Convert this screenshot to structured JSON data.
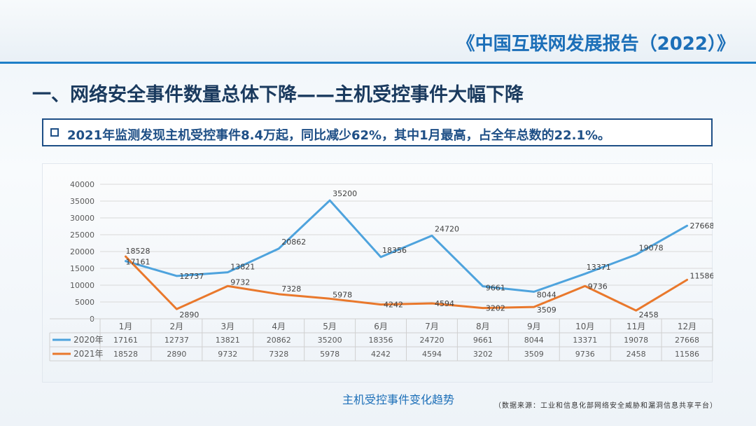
{
  "header": {
    "report_title": "《中国互联网发展报告（2022）》"
  },
  "section": {
    "heading": "一、网络安全事件数量总体下降——主机受控事件大幅下降"
  },
  "summary": {
    "text": "2021年监测发现主机受控事件8.4万起，同比减少62%，其中1月最高，占全年总数的22.1%。"
  },
  "chart_caption": "主机受控事件变化趋势",
  "source_note": "（数据来源：工业和信息化部网络安全威胁和漏洞信息共享平台）",
  "chart_data": {
    "type": "line",
    "title": "主机受控事件变化趋势",
    "categories": [
      "1月",
      "2月",
      "3月",
      "4月",
      "5月",
      "6月",
      "7月",
      "8月",
      "9月",
      "10月",
      "11月",
      "12月"
    ],
    "y_ticks": [
      0,
      5000,
      10000,
      15000,
      20000,
      25000,
      30000,
      35000,
      40000
    ],
    "ylim": [
      0,
      40000
    ],
    "grid": true,
    "legend_placement": "data-table-left",
    "series": [
      {
        "name": "2020年",
        "color": "#4ea3dd",
        "values": [
          17161,
          12737,
          13821,
          20862,
          35200,
          18356,
          24720,
          9661,
          8044,
          13371,
          19078,
          27668
        ]
      },
      {
        "name": "2021年",
        "color": "#e9782c",
        "values": [
          18528,
          2890,
          9732,
          7328,
          5978,
          4242,
          4594,
          3202,
          3509,
          9736,
          2458,
          11586
        ]
      }
    ]
  }
}
